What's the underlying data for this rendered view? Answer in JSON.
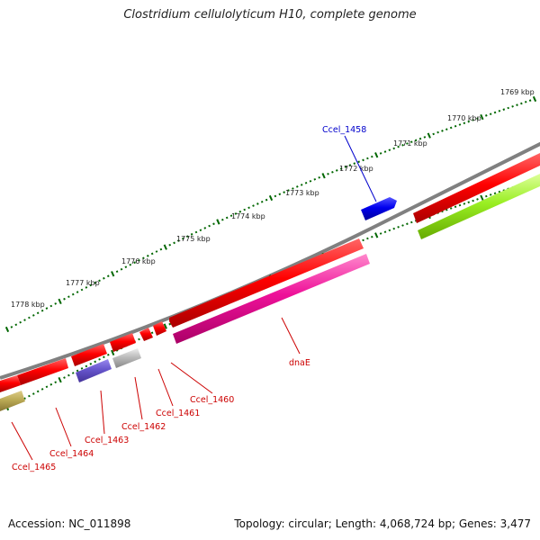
{
  "title": "Clostridium cellulolyticum H10, complete genome",
  "footer": {
    "accession": "Accession: NC_011898",
    "stats": "Topology: circular; Length: 4,068,724 bp; Genes: 3,477"
  },
  "kbp_labels": [
    "1769 kbp",
    "1770 kbp",
    "1771 kbp",
    "1772 kbp",
    "1773 kbp",
    "1774 kbp",
    "1775 kbp",
    "1776 kbp",
    "1777 kbp",
    "1778 kbp"
  ],
  "genes": [
    {
      "label": "Ccel_1458",
      "color": "#0000cc"
    },
    {
      "label": "dnaE",
      "color": "#cc0000"
    },
    {
      "label": "Ccel_1460",
      "color": "#cc0000"
    },
    {
      "label": "Ccel_1461",
      "color": "#cc0000"
    },
    {
      "label": "Ccel_1462",
      "color": "#cc0000"
    },
    {
      "label": "Ccel_1463",
      "color": "#cc0000"
    },
    {
      "label": "Ccel_1464",
      "color": "#cc0000"
    },
    {
      "label": "Ccel_1465",
      "color": "#cc0000"
    }
  ],
  "colors": {
    "backbone": "#808080",
    "cds_forward": "#ee0000",
    "tick": "#006600",
    "magenta_track": "#e8199a",
    "green_track": "#99ee22",
    "blue_gene": "#0000ee",
    "slate_gene": "#6655cc",
    "grey_gene": "#bbbbbb",
    "olive_gene": "#bbaa55"
  }
}
